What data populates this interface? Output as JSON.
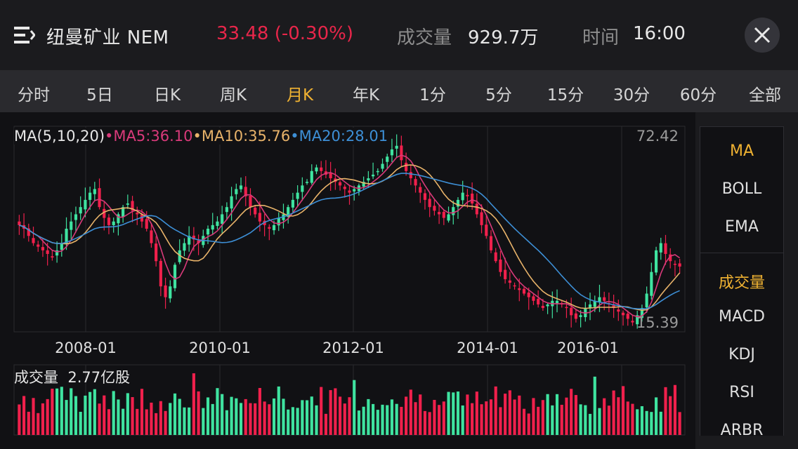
{
  "header": {
    "title": "纽曼矿业 NEM",
    "price_text": "33.48 (-0.30%)",
    "volume_label": "成交量",
    "volume_value": "929.7万",
    "time_label": "时间",
    "time_value": "16:00",
    "menu_icon": "menu-icon",
    "close_icon": "close-icon",
    "price_color": "#e8264a"
  },
  "tabs": [
    {
      "label": "分时"
    },
    {
      "label": "5日"
    },
    {
      "label": "日K"
    },
    {
      "label": "周K"
    },
    {
      "label": "月K",
      "active": true
    },
    {
      "label": "年K"
    },
    {
      "label": "1分"
    },
    {
      "label": "5分"
    },
    {
      "label": "15分"
    },
    {
      "label": "30分"
    },
    {
      "label": "60分"
    },
    {
      "label": "全部"
    }
  ],
  "legend": {
    "ma_params": "MA(5,10,20)",
    "ma5": "MA5:36.10",
    "ma10": "MA10:35.76",
    "ma20": "MA20:28.01",
    "ma5_color": "#d93a7a",
    "ma10_color": "#e8b36a",
    "ma20_color": "#3d8fd6"
  },
  "price_axis": {
    "max_label": "72.42",
    "min_label": "15.39"
  },
  "x_labels": [
    "2008-01",
    "2010-01",
    "2012-01",
    "2014-01",
    "2016-01"
  ],
  "volume_panel": {
    "label": "成交量",
    "value": "2.77亿股"
  },
  "side_panel": {
    "main_indicators": [
      {
        "label": "MA",
        "active": true
      },
      {
        "label": "BOLL"
      },
      {
        "label": "EMA"
      }
    ],
    "sub_indicators": [
      {
        "label": "成交量",
        "active": true
      },
      {
        "label": "MACD"
      },
      {
        "label": "KDJ"
      },
      {
        "label": "RSI"
      },
      {
        "label": "ARBR"
      }
    ]
  },
  "colors": {
    "up": "#3fe3a0",
    "down": "#f0204c",
    "active": "#f0b232"
  },
  "chart_data": {
    "type": "candlestick",
    "interval": "monthly",
    "ylim": [
      15.39,
      72.42
    ],
    "x_ticks": [
      "2008-01",
      "2010-01",
      "2012-01",
      "2014-01",
      "2016-01"
    ],
    "series": [
      {
        "name": "MA5",
        "last": 36.1
      },
      {
        "name": "MA10",
        "last": 35.76
      },
      {
        "name": "MA20",
        "last": 28.01
      }
    ],
    "closes": [
      45,
      44,
      42,
      40,
      39,
      38,
      37,
      36,
      38,
      40,
      44,
      46,
      48,
      50,
      52,
      54,
      55,
      50,
      47,
      45,
      46,
      48,
      50,
      51,
      49,
      48,
      46,
      44,
      40,
      35,
      28,
      25,
      28,
      34,
      38,
      40,
      42,
      41,
      40,
      42,
      44,
      45,
      46,
      48,
      50,
      53,
      55,
      56,
      53,
      50,
      48,
      46,
      45,
      44,
      45,
      47,
      48,
      50,
      52,
      54,
      56,
      57,
      60,
      61,
      60,
      59,
      58,
      57,
      56,
      55,
      54,
      55,
      56,
      57,
      58,
      59,
      60,
      62,
      64,
      66,
      67,
      63,
      60,
      58,
      56,
      54,
      52,
      50,
      49,
      48,
      47,
      48,
      50,
      52,
      54,
      53,
      51,
      48,
      45,
      42,
      38,
      35,
      32,
      30,
      29,
      28,
      27,
      26,
      25,
      24,
      23,
      22,
      23,
      24,
      24,
      23,
      22,
      20,
      19,
      20,
      22,
      23,
      24,
      25,
      24,
      23,
      22,
      21,
      20,
      19,
      18,
      20,
      22,
      26,
      32,
      38,
      40,
      37,
      35,
      34,
      33.5
    ],
    "volume_unit": "亿股",
    "volume_last": 2.77
  }
}
